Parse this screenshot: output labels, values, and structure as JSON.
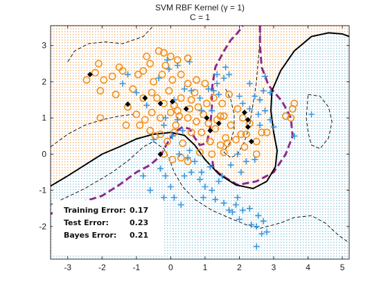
{
  "chart_data": {
    "type": "scatter",
    "title": "SVM RBF Kernel (γ = 1)",
    "subtitle": "C = 1",
    "xlabel": "",
    "ylabel": "",
    "xlim": [
      -3.5,
      5.2
    ],
    "ylim": [
      -2.9,
      3.55
    ],
    "xticks": [
      -3,
      -2,
      -1,
      0,
      1,
      2,
      3,
      4,
      5
    ],
    "yticks": [
      -2,
      -1,
      0,
      1,
      2,
      3
    ],
    "grid": false,
    "colors": {
      "orange_class": "#f0901c",
      "blue_class": "#3c96dc",
      "orange_region": "#f5e0c2",
      "blue_region": "#cde8f2",
      "support_vector": "#000000",
      "svm_boundary": "#000000",
      "bayes_boundary": "#8c2a8c"
    },
    "legend_box": {
      "rows": [
        {
          "label": "Training Error:",
          "value": "0.17"
        },
        {
          "label": "Test Error:",
          "value": "0.23"
        },
        {
          "label": "Bayes Error:",
          "value": "0.21"
        }
      ]
    },
    "series": [
      {
        "marker": "circle",
        "points": [
          [
            -2.1,
            2.5
          ],
          [
            -1.5,
            2.4
          ],
          [
            -1.4,
            2.3
          ],
          [
            -1.7,
            2.15
          ],
          [
            -1.95,
            2.05
          ],
          [
            -2.2,
            2.25
          ],
          [
            -2.45,
            2.05
          ],
          [
            -2.05,
            1.75
          ],
          [
            -1.6,
            1.65
          ],
          [
            -0.95,
            2.2
          ],
          [
            -0.6,
            2.5
          ],
          [
            -0.35,
            2.85
          ],
          [
            -0.2,
            2.8
          ],
          [
            0.0,
            2.7
          ],
          [
            0.2,
            2.6
          ],
          [
            0.5,
            2.65
          ],
          [
            -0.8,
            2.3
          ],
          [
            -0.5,
            2.0
          ],
          [
            -0.25,
            2.2
          ],
          [
            0.05,
            2.05
          ],
          [
            0.3,
            2.2
          ],
          [
            0.5,
            1.95
          ],
          [
            0.75,
            2.05
          ],
          [
            1.0,
            1.95
          ],
          [
            -1.1,
            1.8
          ],
          [
            -0.8,
            1.55
          ],
          [
            -0.55,
            1.7
          ],
          [
            -0.4,
            1.55
          ],
          [
            -0.2,
            1.4
          ],
          [
            0.1,
            1.35
          ],
          [
            0.3,
            1.55
          ],
          [
            0.6,
            1.5
          ],
          [
            0.8,
            1.3
          ],
          [
            1.05,
            1.4
          ],
          [
            1.25,
            1.55
          ],
          [
            1.5,
            1.4
          ],
          [
            1.7,
            1.65
          ],
          [
            -1.0,
            1.1
          ],
          [
            -0.75,
            0.95
          ],
          [
            -0.55,
            1.15
          ],
          [
            -0.3,
            1.0
          ],
          [
            0.0,
            1.15
          ],
          [
            0.25,
            1.05
          ],
          [
            0.5,
            1.0
          ],
          [
            0.75,
            0.9
          ],
          [
            1.1,
            0.85
          ],
          [
            1.3,
            0.7
          ],
          [
            1.55,
            1.05
          ],
          [
            1.75,
            0.8
          ],
          [
            -2.05,
            1.0
          ],
          [
            -1.3,
            0.8
          ],
          [
            -0.9,
            0.8
          ],
          [
            -0.6,
            0.65
          ],
          [
            -0.3,
            0.55
          ],
          [
            0.1,
            0.6
          ],
          [
            0.35,
            0.3
          ],
          [
            0.6,
            0.6
          ],
          [
            0.9,
            0.6
          ],
          [
            1.15,
            0.35
          ],
          [
            1.45,
            0.25
          ],
          [
            1.65,
            0.3
          ],
          [
            1.9,
            0.4
          ],
          [
            2.05,
            0.55
          ],
          [
            1.55,
            0.05
          ],
          [
            1.2,
            0.0
          ],
          [
            0.5,
            -0.2
          ],
          [
            0.05,
            -0.15
          ],
          [
            -0.45,
            0.5
          ],
          [
            -0.2,
            0.0
          ],
          [
            0.85,
            0.05
          ],
          [
            1.95,
            1.25
          ],
          [
            2.1,
            1.0
          ],
          [
            2.3,
            0.85
          ],
          [
            2.2,
            0.55
          ],
          [
            2.65,
            0.6
          ],
          [
            2.15,
            0.2
          ],
          [
            2.5,
            0.0
          ],
          [
            3.35,
            1.05
          ],
          [
            3.55,
            1.25
          ],
          [
            3.6,
            1.4
          ],
          [
            3.5,
            1.0
          ],
          [
            1.45,
            1.05
          ],
          [
            0.95,
            1.1
          ],
          [
            0.15,
            0.8
          ],
          [
            -0.1,
            0.35
          ],
          [
            1.6,
            0.45
          ],
          [
            2.5,
            0.35
          ],
          [
            0.3,
            -0.1
          ],
          [
            0.7,
            1.7
          ],
          [
            -1.25,
            1.3
          ],
          [
            -0.05,
            1.75
          ],
          [
            0.2,
            1.2
          ],
          [
            2.8,
            0.6
          ],
          [
            -0.7,
            2.7
          ],
          [
            1.35,
            0.95
          ],
          [
            0.55,
            1.25
          ],
          [
            -0.15,
            2.45
          ]
        ]
      },
      {
        "marker": "plus",
        "points": [
          [
            -0.1,
            2.6
          ],
          [
            -0.05,
            2.35
          ],
          [
            -0.35,
            2.1
          ],
          [
            0.2,
            2.45
          ],
          [
            -1.4,
            1.95
          ],
          [
            -1.0,
            1.7
          ],
          [
            -0.7,
            1.35
          ],
          [
            -0.15,
            1.0
          ],
          [
            0.1,
            1.5
          ],
          [
            0.4,
            1.8
          ],
          [
            0.6,
            1.75
          ],
          [
            0.85,
            1.55
          ],
          [
            1.1,
            1.8
          ],
          [
            1.25,
            1.75
          ],
          [
            1.35,
            1.95
          ],
          [
            1.4,
            1.65
          ],
          [
            0.9,
            1.2
          ],
          [
            1.2,
            1.2
          ],
          [
            0.2,
            0.95
          ],
          [
            -0.2,
            0.8
          ],
          [
            -0.5,
            0.4
          ],
          [
            0.05,
            0.5
          ],
          [
            0.35,
            0.65
          ],
          [
            0.55,
            0.1
          ],
          [
            0.25,
            0.0
          ],
          [
            0.7,
            -0.2
          ],
          [
            0.6,
            -0.5
          ],
          [
            0.4,
            -0.6
          ],
          [
            0.85,
            -0.7
          ],
          [
            1.0,
            -0.9
          ],
          [
            1.2,
            -1.0
          ],
          [
            0.95,
            -1.2
          ],
          [
            1.3,
            -1.25
          ],
          [
            1.55,
            -1.35
          ],
          [
            1.7,
            -1.55
          ],
          [
            1.9,
            -1.4
          ],
          [
            2.1,
            -1.55
          ],
          [
            2.3,
            -1.5
          ],
          [
            2.35,
            -1.95
          ],
          [
            2.5,
            -2.0
          ],
          [
            2.55,
            -1.7
          ],
          [
            2.7,
            -1.85
          ],
          [
            2.65,
            -2.2
          ],
          [
            2.5,
            -2.55
          ],
          [
            2.8,
            -2.15
          ],
          [
            1.95,
            -1.2
          ],
          [
            -0.8,
            -0.6
          ],
          [
            -0.3,
            -0.4
          ],
          [
            -0.15,
            -0.6
          ],
          [
            0.0,
            -0.9
          ],
          [
            -0.6,
            -1.0
          ],
          [
            -0.2,
            -1.2
          ],
          [
            -0.4,
            -1.4
          ],
          [
            0.1,
            -1.2
          ],
          [
            0.3,
            -1.4
          ],
          [
            1.5,
            -0.6
          ],
          [
            1.75,
            -0.3
          ],
          [
            2.05,
            -0.5
          ],
          [
            2.2,
            -0.2
          ],
          [
            2.45,
            -0.15
          ],
          [
            1.95,
            0.0
          ],
          [
            2.1,
            1.4
          ],
          [
            2.3,
            1.25
          ],
          [
            2.45,
            1.6
          ],
          [
            2.6,
            1.5
          ],
          [
            2.7,
            1.75
          ],
          [
            2.9,
            1.7
          ],
          [
            2.55,
            1.1
          ],
          [
            2.75,
            1.2
          ],
          [
            2.9,
            0.95
          ],
          [
            3.0,
            0.75
          ],
          [
            2.6,
            0.8
          ],
          [
            2.0,
            1.6
          ],
          [
            2.3,
            1.95
          ],
          [
            2.75,
            2.15
          ],
          [
            3.6,
            0.5
          ],
          [
            4.1,
            1.1
          ],
          [
            1.55,
            2.1
          ],
          [
            1.6,
            2.4
          ],
          [
            1.7,
            2.2
          ],
          [
            1.35,
            2.2
          ],
          [
            0.55,
            2.55
          ],
          [
            -1.25,
            2.2
          ],
          [
            0.5,
            -0.1
          ],
          [
            1.15,
            -0.35
          ],
          [
            1.4,
            -0.75
          ],
          [
            0.9,
            -0.5
          ],
          [
            2.0,
            -1.8
          ],
          [
            1.8,
            -1.6
          ]
        ]
      },
      {
        "marker": "support_vector",
        "points": [
          [
            -2.35,
            2.2
          ],
          [
            -1.25,
            1.38
          ],
          [
            -0.75,
            1.55
          ],
          [
            -0.3,
            1.4
          ],
          [
            0.05,
            1.45
          ],
          [
            0.45,
            1.25
          ],
          [
            1.05,
            1.0
          ],
          [
            1.4,
            0.85
          ],
          [
            1.15,
            0.65
          ],
          [
            2.15,
            1.15
          ],
          [
            2.25,
            0.95
          ],
          [
            2.25,
            0.75
          ],
          [
            2.35,
            0.35
          ],
          [
            -0.3,
            0.0
          ]
        ]
      }
    ],
    "svm_boundary_paths": [
      [
        [
          -3.5,
          -0.88
        ],
        [
          -3.0,
          -0.6
        ],
        [
          -2.5,
          -0.3
        ],
        [
          -2.0,
          0.0
        ],
        [
          -1.5,
          0.2
        ],
        [
          -1.0,
          0.42
        ],
        [
          -0.5,
          0.55
        ],
        [
          0.0,
          0.6
        ],
        [
          0.4,
          0.52
        ],
        [
          0.7,
          0.25
        ],
        [
          1.0,
          -0.15
        ],
        [
          1.4,
          -0.55
        ],
        [
          1.9,
          -0.85
        ],
        [
          2.4,
          -0.95
        ],
        [
          2.8,
          -0.75
        ],
        [
          3.05,
          -0.35
        ],
        [
          3.1,
          0.1
        ],
        [
          3.0,
          0.6
        ],
        [
          2.92,
          1.2
        ],
        [
          2.95,
          1.75
        ],
        [
          3.2,
          2.3
        ],
        [
          3.6,
          2.85
        ],
        [
          4.1,
          3.25
        ],
        [
          4.6,
          3.35
        ],
        [
          5.0,
          3.32
        ],
        [
          5.2,
          3.25
        ]
      ]
    ],
    "svm_margin_paths": [
      [
        [
          -3.0,
          2.55
        ],
        [
          -2.8,
          2.85
        ],
        [
          -2.4,
          3.05
        ],
        [
          -1.9,
          3.1
        ],
        [
          -1.4,
          3.05
        ],
        [
          -0.8,
          3.25
        ],
        [
          -0.5,
          3.55
        ]
      ],
      [
        [
          -3.5,
          0.2
        ],
        [
          -3.0,
          0.55
        ],
        [
          -2.5,
          0.8
        ],
        [
          -2.0,
          0.95
        ],
        [
          -1.5,
          1.05
        ],
        [
          -1.1,
          1.1
        ]
      ],
      [
        [
          1.6,
          1.8
        ],
        [
          1.75,
          1.5
        ],
        [
          1.85,
          1.1
        ],
        [
          1.85,
          0.7
        ],
        [
          1.75,
          0.35
        ],
        [
          1.6,
          0.15
        ],
        [
          1.55,
          0.05
        ],
        [
          1.75,
          -0.1
        ],
        [
          1.95,
          0.0
        ],
        [
          2.15,
          0.35
        ],
        [
          2.3,
          0.8
        ],
        [
          2.4,
          1.4
        ],
        [
          2.5,
          2.0
        ],
        [
          2.55,
          2.6
        ],
        [
          2.6,
          3.2
        ],
        [
          2.62,
          3.55
        ]
      ],
      [
        [
          -3.5,
          -1.4
        ],
        [
          -2.5,
          -0.95
        ],
        [
          -1.7,
          -0.5
        ],
        [
          -1.2,
          -0.15
        ],
        [
          -0.8,
          0.2
        ],
        [
          -0.5,
          0.35
        ],
        [
          -0.2,
          0.15
        ],
        [
          -0.05,
          -0.1
        ],
        [
          0.1,
          -0.5
        ],
        [
          0.35,
          -0.9
        ],
        [
          0.7,
          -1.25
        ],
        [
          1.2,
          -1.55
        ],
        [
          1.8,
          -1.8
        ],
        [
          2.2,
          -1.95
        ],
        [
          2.6,
          -2.05
        ],
        [
          3.2,
          -1.9
        ],
        [
          3.6,
          -1.75
        ],
        [
          4.1,
          -1.7
        ],
        [
          4.5,
          -1.9
        ],
        [
          4.9,
          -2.25
        ],
        [
          5.2,
          -2.45
        ]
      ],
      [
        [
          4.0,
          1.65
        ],
        [
          4.35,
          1.6
        ],
        [
          4.6,
          1.3
        ],
        [
          4.7,
          0.9
        ],
        [
          4.6,
          0.45
        ],
        [
          4.35,
          0.15
        ],
        [
          4.1,
          0.25
        ],
        [
          4.0,
          0.6
        ],
        [
          3.95,
          1.0
        ],
        [
          4.0,
          1.65
        ]
      ]
    ],
    "bayes_boundary_paths": [
      [
        [
          -3.5,
          -1.65
        ],
        [
          -3.0,
          -1.45
        ],
        [
          -2.5,
          -1.3
        ],
        [
          -2.0,
          -1.15
        ],
        [
          -1.5,
          -0.85
        ],
        [
          -1.0,
          -0.5
        ],
        [
          -0.6,
          -0.3
        ],
        [
          -0.3,
          -0.05
        ],
        [
          -0.1,
          0.3
        ],
        [
          0.1,
          0.6
        ],
        [
          0.35,
          0.75
        ],
        [
          0.55,
          0.7
        ],
        [
          0.7,
          0.45
        ],
        [
          0.85,
          0.25
        ],
        [
          1.05,
          0.3
        ],
        [
          1.15,
          0.75
        ],
        [
          1.2,
          1.3
        ],
        [
          1.2,
          1.8
        ],
        [
          1.3,
          2.4
        ],
        [
          1.55,
          2.85
        ],
        [
          1.75,
          3.15
        ],
        [
          1.95,
          3.35
        ],
        [
          2.1,
          3.55
        ]
      ],
      [
        [
          2.6,
          3.55
        ],
        [
          2.6,
          3.0
        ],
        [
          2.65,
          2.4
        ],
        [
          2.85,
          1.9
        ],
        [
          3.25,
          1.45
        ],
        [
          3.5,
          1.0
        ],
        [
          3.55,
          0.5
        ],
        [
          3.35,
          0.0
        ],
        [
          3.0,
          -0.5
        ],
        [
          2.5,
          -0.75
        ],
        [
          1.95,
          -0.85
        ],
        [
          1.5,
          -0.6
        ],
        [
          1.25,
          -0.4
        ],
        [
          1.2,
          -0.1
        ]
      ]
    ]
  }
}
